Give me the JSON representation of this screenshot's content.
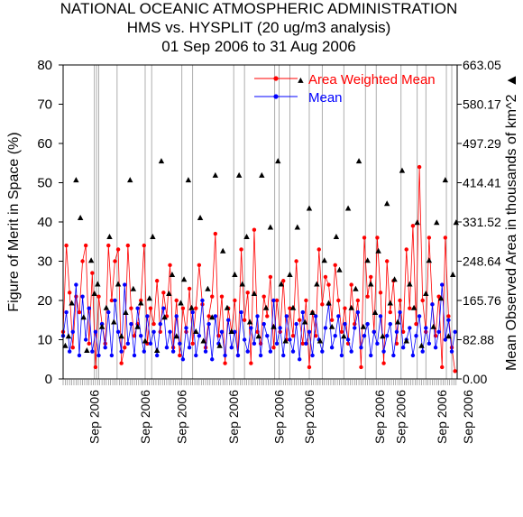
{
  "chart_data": {
    "type": "scatter",
    "title": [
      "NATIONAL OCEANIC ATMOSPHERIC ADMINISTRATION",
      "HMS vs. HYSPLIT (20 ug/m3 analysis)",
      "01 Sep 2006 to 31 Aug 2006"
    ],
    "ylabel": "Figure of Merit in Space (%)",
    "ylabel_right": "Mean Observed Area in thousands of km^2",
    "ylabel_right_marker": "▲",
    "ylim": [
      0,
      80
    ],
    "yticks": [
      0,
      10,
      20,
      30,
      40,
      50,
      60,
      70,
      80
    ],
    "ylim_right": [
      0,
      663.05
    ],
    "yticks_right": [
      "0.00",
      "82.88",
      "165.76",
      "248.64",
      "331.52",
      "414.41",
      "497.29",
      "580.17",
      "663.05"
    ],
    "xlim": [
      0,
      365
    ],
    "xtick_labels": [
      "Sep 2006",
      "Sep 2006",
      "Sep 2006",
      "Sep 2006",
      "Sep 2006",
      "Sep 2006",
      "Sep 2006",
      "Sep 2006",
      "Sep 2006",
      "Sep 2006"
    ],
    "xtick_label_days": [
      29,
      76,
      110,
      158,
      200,
      228,
      293,
      313,
      351,
      375
    ],
    "vertical_lines": [
      29,
      31,
      33,
      50,
      76,
      82,
      110,
      120,
      158,
      168,
      196,
      200,
      210,
      228,
      240,
      260,
      280,
      290,
      313,
      328,
      336,
      355,
      360
    ],
    "legend_position": "top-right",
    "series": [
      {
        "name": "Area Weighted Mean",
        "color": "#ff0000",
        "marker": "circle-line",
        "x": [
          0,
          3,
          6,
          9,
          12,
          15,
          18,
          21,
          24,
          27,
          30,
          33,
          36,
          39,
          42,
          45,
          48,
          51,
          54,
          57,
          60,
          63,
          66,
          69,
          72,
          75,
          78,
          81,
          84,
          87,
          90,
          93,
          96,
          99,
          102,
          105,
          108,
          111,
          114,
          117,
          120,
          123,
          126,
          129,
          132,
          135,
          138,
          141,
          144,
          147,
          150,
          153,
          156,
          159,
          162,
          165,
          168,
          171,
          174,
          177,
          180,
          183,
          186,
          189,
          192,
          195,
          198,
          201,
          204,
          207,
          210,
          213,
          216,
          219,
          222,
          225,
          228,
          231,
          234,
          237,
          240,
          243,
          246,
          249,
          252,
          255,
          258,
          261,
          264,
          267,
          270,
          273,
          276,
          279,
          282,
          285,
          288,
          291,
          294,
          297,
          300,
          303,
          306,
          309,
          312,
          315,
          318,
          321,
          324,
          327,
          330,
          333,
          336,
          339,
          342,
          345,
          348,
          351,
          354,
          357,
          360,
          363
        ],
        "y": [
          12,
          34,
          22,
          8,
          21,
          17,
          30,
          34,
          9,
          27,
          3,
          21,
          14,
          9,
          34,
          20,
          30,
          33,
          4,
          8,
          34,
          18,
          11,
          14,
          20,
          34,
          9,
          18,
          14,
          25,
          12,
          22,
          16,
          29,
          8,
          20,
          6,
          18,
          12,
          23,
          9,
          18,
          29,
          19,
          8,
          16,
          21,
          37,
          11,
          21,
          4,
          18,
          12,
          20,
          6,
          33,
          15,
          22,
          4,
          38,
          12,
          9,
          21,
          16,
          26,
          8,
          20,
          12,
          25,
          10,
          18,
          11,
          30,
          15,
          9,
          20,
          3,
          17,
          11,
          33,
          19,
          26,
          24,
          15,
          29,
          20,
          12,
          18,
          9,
          24,
          14,
          20,
          3,
          36,
          21,
          26,
          12,
          36,
          22,
          4,
          30,
          17,
          25,
          9,
          20,
          12,
          33,
          18,
          39,
          14,
          54,
          20,
          12,
          36,
          19,
          11,
          21,
          3,
          36,
          16,
          8,
          2
        ]
      },
      {
        "name": "Mean",
        "color": "#0000ff",
        "marker": "circle-line",
        "x": [
          0,
          3,
          6,
          9,
          12,
          15,
          18,
          21,
          24,
          27,
          30,
          33,
          36,
          39,
          42,
          45,
          48,
          51,
          54,
          57,
          60,
          63,
          66,
          69,
          72,
          75,
          78,
          81,
          84,
          87,
          90,
          93,
          96,
          99,
          102,
          105,
          108,
          111,
          114,
          117,
          120,
          123,
          126,
          129,
          132,
          135,
          138,
          141,
          144,
          147,
          150,
          153,
          156,
          159,
          162,
          165,
          168,
          171,
          174,
          177,
          180,
          183,
          186,
          189,
          192,
          195,
          198,
          201,
          204,
          207,
          210,
          213,
          216,
          219,
          222,
          225,
          228,
          231,
          234,
          237,
          240,
          243,
          246,
          249,
          252,
          255,
          258,
          261,
          264,
          267,
          270,
          273,
          276,
          279,
          282,
          285,
          288,
          291,
          294,
          297,
          300,
          303,
          306,
          309,
          312,
          315,
          318,
          321,
          324,
          327,
          330,
          333,
          336,
          339,
          342,
          345,
          348,
          351,
          354,
          357,
          360,
          363
        ],
        "y": [
          11,
          17,
          7,
          12,
          24,
          6,
          21,
          10,
          18,
          7,
          12,
          6,
          14,
          8,
          17,
          6,
          20,
          12,
          7,
          24,
          9,
          14,
          6,
          18,
          11,
          7,
          16,
          9,
          12,
          6,
          14,
          18,
          8,
          12,
          7,
          16,
          9,
          5,
          13,
          8,
          17,
          6,
          11,
          20,
          7,
          14,
          5,
          16,
          9,
          12,
          6,
          15,
          8,
          12,
          6,
          17,
          10,
          7,
          13,
          9,
          16,
          6,
          14,
          11,
          7,
          20,
          9,
          13,
          6,
          16,
          10,
          7,
          14,
          5,
          17,
          9,
          12,
          6,
          16,
          10,
          7,
          13,
          19,
          8,
          11,
          16,
          6,
          14,
          10,
          7,
          13,
          17,
          8,
          11,
          14,
          6,
          12,
          9,
          16,
          7,
          11,
          14,
          6,
          12,
          17,
          8,
          10,
          13,
          6,
          11,
          16,
          7,
          13,
          9,
          19,
          8,
          12,
          24,
          10,
          15,
          7,
          12
        ]
      },
      {
        "name": "Mean Observed Area",
        "color": "#000000",
        "marker": "triangle",
        "axis": "right",
        "x": [
          2,
          5,
          8,
          12,
          16,
          19,
          22,
          26,
          29,
          32,
          36,
          40,
          43,
          47,
          51,
          54,
          58,
          62,
          65,
          69,
          72,
          76,
          80,
          83,
          87,
          91,
          94,
          98,
          101,
          105,
          109,
          112,
          116,
          119,
          123,
          127,
          130,
          134,
          138,
          141,
          145,
          148,
          152,
          156,
          159,
          163,
          166,
          170,
          173,
          177,
          181,
          184,
          188,
          192,
          195,
          199,
          202,
          206,
          210,
          213,
          217,
          220,
          224,
          228,
          231,
          235,
          238,
          242,
          246,
          249,
          253,
          256,
          260,
          264,
          267,
          271,
          274,
          278,
          282,
          285,
          289,
          292,
          296,
          300,
          303,
          307,
          310,
          314,
          318,
          321,
          325,
          328,
          332,
          336,
          339,
          343,
          346,
          350,
          354,
          357,
          361,
          364
        ],
        "y": [
          70,
          90,
          160,
          420,
          340,
          130,
          60,
          250,
          180,
          200,
          110,
          150,
          300,
          120,
          200,
          90,
          140,
          420,
          190,
          110,
          160,
          80,
          170,
          300,
          60,
          460,
          130,
          180,
          220,
          90,
          160,
          210,
          420,
          150,
          100,
          340,
          80,
          190,
          130,
          430,
          70,
          270,
          150,
          100,
          220,
          430,
          200,
          300,
          120,
          180,
          90,
          430,
          150,
          320,
          110,
          460,
          200,
          80,
          220,
          150,
          320,
          630,
          120,
          360,
          140,
          200,
          80,
          250,
          160,
          110,
          300,
          230,
          90,
          360,
          150,
          190,
          460,
          110,
          250,
          200,
          140,
          270,
          90,
          370,
          160,
          210,
          120,
          440,
          80,
          200,
          150,
          330,
          70,
          180,
          250,
          110,
          330,
          170,
          420,
          90,
          220,
          330
        ]
      }
    ]
  }
}
